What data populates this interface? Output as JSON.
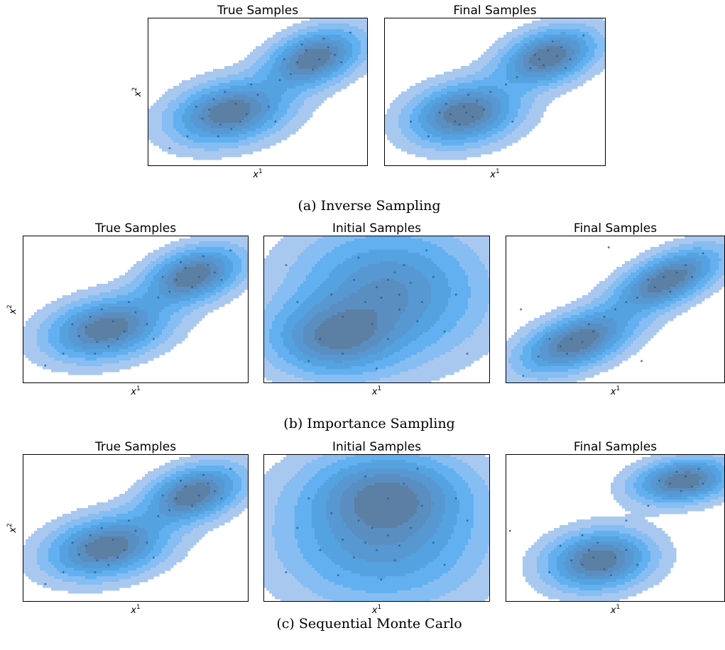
{
  "figure": {
    "rows": [
      {
        "caption": "(a) Inverse Sampling",
        "panels": [
          {
            "title": "True Samples",
            "xlabel": "x",
            "xlabel_sup": "1",
            "ylabel": "x",
            "ylabel_sup": "2"
          },
          {
            "title": "Final Samples",
            "xlabel": "x",
            "xlabel_sup": "1",
            "ylabel": "",
            "ylabel_sup": ""
          }
        ]
      },
      {
        "caption": "(b) Importance Sampling",
        "panels": [
          {
            "title": "True Samples",
            "xlabel": "x",
            "xlabel_sup": "1",
            "ylabel": "x",
            "ylabel_sup": "2"
          },
          {
            "title": "Initial Samples",
            "xlabel": "x",
            "xlabel_sup": "1",
            "ylabel": "",
            "ylabel_sup": ""
          },
          {
            "title": "Final Samples",
            "xlabel": "x",
            "xlabel_sup": "1",
            "ylabel": "",
            "ylabel_sup": ""
          }
        ]
      },
      {
        "caption": "(c) Sequential Monte Carlo",
        "panels": [
          {
            "title": "True Samples",
            "xlabel": "x",
            "xlabel_sup": "1",
            "ylabel": "x",
            "ylabel_sup": "2"
          },
          {
            "title": "Initial Samples",
            "xlabel": "x",
            "xlabel_sup": "1",
            "ylabel": "",
            "ylabel_sup": ""
          },
          {
            "title": "Final Samples",
            "xlabel": "x",
            "xlabel_sup": "1",
            "ylabel": "",
            "ylabel_sup": ""
          }
        ]
      }
    ]
  },
  "colors": {
    "fill_levels": [
      "#a9c8f0",
      "#86bdf2",
      "#62b0f0",
      "#55a2e0",
      "#5898d2",
      "#5a8ec0",
      "#5c7fa4",
      "#5b6a85"
    ],
    "sample_point": "#1f5f9a"
  },
  "chart_data": [
    {
      "type": "contour",
      "panel": "Inverse Sampling / True Samples",
      "xticks": [],
      "yticks": [],
      "grid": false,
      "legend": "none",
      "components": [
        {
          "mean": [
            0.37,
            0.37
          ],
          "spread": [
            0.17,
            0.12
          ],
          "angle": 25
        },
        {
          "mean": [
            0.75,
            0.73
          ],
          "spread": [
            0.15,
            0.1
          ],
          "angle": 38
        }
      ],
      "samples": [
        [
          0.25,
          0.32
        ],
        [
          0.33,
          0.28
        ],
        [
          0.4,
          0.42
        ],
        [
          0.3,
          0.45
        ],
        [
          0.45,
          0.35
        ],
        [
          0.38,
          0.25
        ],
        [
          0.28,
          0.38
        ],
        [
          0.5,
          0.48
        ],
        [
          0.42,
          0.3
        ],
        [
          0.35,
          0.5
        ],
        [
          0.22,
          0.4
        ],
        [
          0.55,
          0.4
        ],
        [
          0.32,
          0.2
        ],
        [
          0.47,
          0.55
        ],
        [
          0.6,
          0.58
        ],
        [
          0.68,
          0.7
        ],
        [
          0.72,
          0.78
        ],
        [
          0.78,
          0.72
        ],
        [
          0.82,
          0.8
        ],
        [
          0.75,
          0.65
        ],
        [
          0.7,
          0.82
        ],
        [
          0.85,
          0.75
        ],
        [
          0.65,
          0.62
        ],
        [
          0.8,
          0.86
        ],
        [
          0.88,
          0.7
        ],
        [
          0.62,
          0.72
        ],
        [
          0.18,
          0.2
        ],
        [
          0.1,
          0.12
        ],
        [
          0.92,
          0.9
        ],
        [
          0.58,
          0.3
        ]
      ]
    },
    {
      "type": "contour",
      "panel": "Inverse Sampling / Final Samples",
      "xticks": [],
      "yticks": [],
      "grid": false,
      "legend": "none",
      "components": [
        {
          "mean": [
            0.36,
            0.36
          ],
          "spread": [
            0.16,
            0.12
          ],
          "angle": 25
        },
        {
          "mean": [
            0.74,
            0.74
          ],
          "spread": [
            0.15,
            0.1
          ],
          "angle": 35
        }
      ],
      "samples": [
        [
          0.3,
          0.35
        ],
        [
          0.36,
          0.4
        ],
        [
          0.4,
          0.33
        ],
        [
          0.34,
          0.28
        ],
        [
          0.42,
          0.44
        ],
        [
          0.28,
          0.42
        ],
        [
          0.38,
          0.48
        ],
        [
          0.45,
          0.38
        ],
        [
          0.32,
          0.3
        ],
        [
          0.48,
          0.5
        ],
        [
          0.25,
          0.36
        ],
        [
          0.37,
          0.36
        ],
        [
          0.55,
          0.55
        ],
        [
          0.6,
          0.6
        ],
        [
          0.7,
          0.72
        ],
        [
          0.74,
          0.78
        ],
        [
          0.78,
          0.74
        ],
        [
          0.72,
          0.68
        ],
        [
          0.8,
          0.8
        ],
        [
          0.68,
          0.75
        ],
        [
          0.84,
          0.72
        ],
        [
          0.76,
          0.84
        ],
        [
          0.82,
          0.66
        ],
        [
          0.66,
          0.66
        ],
        [
          0.12,
          0.3
        ],
        [
          0.9,
          0.88
        ],
        [
          0.2,
          0.2
        ],
        [
          0.58,
          0.3
        ]
      ]
    },
    {
      "type": "contour",
      "panel": "Importance Sampling / True Samples",
      "xticks": [],
      "yticks": [],
      "grid": false,
      "legend": "none",
      "components": [
        {
          "mean": [
            0.37,
            0.37
          ],
          "spread": [
            0.17,
            0.12
          ],
          "angle": 25
        },
        {
          "mean": [
            0.75,
            0.73
          ],
          "spread": [
            0.15,
            0.1
          ],
          "angle": 38
        }
      ],
      "samples": [
        [
          0.25,
          0.32
        ],
        [
          0.33,
          0.28
        ],
        [
          0.4,
          0.42
        ],
        [
          0.3,
          0.45
        ],
        [
          0.45,
          0.35
        ],
        [
          0.38,
          0.25
        ],
        [
          0.28,
          0.38
        ],
        [
          0.5,
          0.48
        ],
        [
          0.42,
          0.3
        ],
        [
          0.35,
          0.5
        ],
        [
          0.22,
          0.4
        ],
        [
          0.55,
          0.4
        ],
        [
          0.32,
          0.2
        ],
        [
          0.47,
          0.55
        ],
        [
          0.6,
          0.58
        ],
        [
          0.68,
          0.7
        ],
        [
          0.72,
          0.78
        ],
        [
          0.78,
          0.72
        ],
        [
          0.82,
          0.8
        ],
        [
          0.75,
          0.65
        ],
        [
          0.7,
          0.82
        ],
        [
          0.85,
          0.75
        ],
        [
          0.65,
          0.62
        ],
        [
          0.8,
          0.86
        ],
        [
          0.88,
          0.7
        ],
        [
          0.62,
          0.72
        ],
        [
          0.18,
          0.2
        ],
        [
          0.1,
          0.12
        ],
        [
          0.92,
          0.9
        ],
        [
          0.58,
          0.3
        ]
      ]
    },
    {
      "type": "contour",
      "panel": "Importance Sampling / Initial Samples",
      "xticks": [],
      "yticks": [],
      "grid": false,
      "legend": "none",
      "components": [
        {
          "mean": [
            0.55,
            0.62
          ],
          "spread": [
            0.26,
            0.28
          ],
          "angle": 0
        },
        {
          "mean": [
            0.3,
            0.3
          ],
          "spread": [
            0.18,
            0.16
          ],
          "angle": 0
        }
      ],
      "samples": [
        [
          0.5,
          0.65
        ],
        [
          0.55,
          0.7
        ],
        [
          0.6,
          0.6
        ],
        [
          0.45,
          0.55
        ],
        [
          0.58,
          0.75
        ],
        [
          0.65,
          0.68
        ],
        [
          0.52,
          0.58
        ],
        [
          0.4,
          0.7
        ],
        [
          0.7,
          0.55
        ],
        [
          0.62,
          0.8
        ],
        [
          0.35,
          0.45
        ],
        [
          0.48,
          0.4
        ],
        [
          0.75,
          0.72
        ],
        [
          0.3,
          0.6
        ],
        [
          0.68,
          0.42
        ],
        [
          0.25,
          0.3
        ],
        [
          0.8,
          0.35
        ],
        [
          0.15,
          0.55
        ],
        [
          0.42,
          0.85
        ],
        [
          0.85,
          0.6
        ],
        [
          0.2,
          0.15
        ],
        [
          0.55,
          0.3
        ],
        [
          0.9,
          0.2
        ],
        [
          0.1,
          0.8
        ],
        [
          0.6,
          0.5
        ],
        [
          0.35,
          0.2
        ],
        [
          0.72,
          0.9
        ],
        [
          0.5,
          0.1
        ]
      ]
    },
    {
      "type": "contour",
      "panel": "Importance Sampling / Final Samples",
      "xticks": [],
      "yticks": [],
      "grid": false,
      "legend": "none",
      "components": [
        {
          "mean": [
            0.32,
            0.28
          ],
          "spread": [
            0.18,
            0.1
          ],
          "angle": 35
        },
        {
          "mean": [
            0.73,
            0.7
          ],
          "spread": [
            0.18,
            0.09
          ],
          "angle": 40
        }
      ],
      "samples": [
        [
          0.25,
          0.25
        ],
        [
          0.3,
          0.3
        ],
        [
          0.35,
          0.28
        ],
        [
          0.28,
          0.2
        ],
        [
          0.4,
          0.35
        ],
        [
          0.2,
          0.3
        ],
        [
          0.45,
          0.45
        ],
        [
          0.5,
          0.5
        ],
        [
          0.6,
          0.58
        ],
        [
          0.68,
          0.65
        ],
        [
          0.72,
          0.72
        ],
        [
          0.78,
          0.75
        ],
        [
          0.82,
          0.8
        ],
        [
          0.65,
          0.7
        ],
        [
          0.75,
          0.62
        ],
        [
          0.85,
          0.72
        ],
        [
          0.55,
          0.55
        ],
        [
          0.38,
          0.4
        ],
        [
          0.15,
          0.18
        ],
        [
          0.08,
          0.05
        ],
        [
          0.47,
          0.92
        ],
        [
          0.62,
          0.15
        ],
        [
          0.07,
          0.5
        ],
        [
          0.9,
          0.88
        ]
      ]
    },
    {
      "type": "contour",
      "panel": "Sequential Monte Carlo / True Samples",
      "xticks": [],
      "yticks": [],
      "grid": false,
      "legend": "none",
      "components": [
        {
          "mean": [
            0.37,
            0.37
          ],
          "spread": [
            0.17,
            0.12
          ],
          "angle": 25
        },
        {
          "mean": [
            0.75,
            0.73
          ],
          "spread": [
            0.15,
            0.1
          ],
          "angle": 38
        }
      ],
      "samples": [
        [
          0.25,
          0.32
        ],
        [
          0.33,
          0.28
        ],
        [
          0.4,
          0.42
        ],
        [
          0.3,
          0.45
        ],
        [
          0.45,
          0.35
        ],
        [
          0.38,
          0.25
        ],
        [
          0.28,
          0.38
        ],
        [
          0.5,
          0.48
        ],
        [
          0.42,
          0.3
        ],
        [
          0.35,
          0.5
        ],
        [
          0.22,
          0.4
        ],
        [
          0.55,
          0.4
        ],
        [
          0.32,
          0.2
        ],
        [
          0.47,
          0.55
        ],
        [
          0.6,
          0.58
        ],
        [
          0.68,
          0.7
        ],
        [
          0.72,
          0.78
        ],
        [
          0.78,
          0.72
        ],
        [
          0.82,
          0.8
        ],
        [
          0.75,
          0.65
        ],
        [
          0.7,
          0.82
        ],
        [
          0.85,
          0.75
        ],
        [
          0.65,
          0.62
        ],
        [
          0.8,
          0.86
        ],
        [
          0.88,
          0.7
        ],
        [
          0.62,
          0.72
        ],
        [
          0.18,
          0.2
        ],
        [
          0.1,
          0.12
        ],
        [
          0.92,
          0.9
        ],
        [
          0.58,
          0.3
        ]
      ]
    },
    {
      "type": "contour",
      "panel": "Sequential Monte Carlo / Initial Samples",
      "xticks": [],
      "yticks": [],
      "grid": false,
      "legend": "none",
      "components": [
        {
          "mean": [
            0.52,
            0.42
          ],
          "spread": [
            0.28,
            0.28
          ],
          "angle": 0
        },
        {
          "mean": [
            0.55,
            0.75
          ],
          "spread": [
            0.22,
            0.18
          ],
          "angle": 0
        }
      ],
      "samples": [
        [
          0.45,
          0.4
        ],
        [
          0.5,
          0.35
        ],
        [
          0.55,
          0.45
        ],
        [
          0.4,
          0.3
        ],
        [
          0.6,
          0.38
        ],
        [
          0.48,
          0.5
        ],
        [
          0.35,
          0.42
        ],
        [
          0.58,
          0.28
        ],
        [
          0.65,
          0.5
        ],
        [
          0.42,
          0.55
        ],
        [
          0.3,
          0.6
        ],
        [
          0.7,
          0.65
        ],
        [
          0.55,
          0.7
        ],
        [
          0.25,
          0.35
        ],
        [
          0.75,
          0.4
        ],
        [
          0.62,
          0.8
        ],
        [
          0.2,
          0.7
        ],
        [
          0.8,
          0.25
        ],
        [
          0.45,
          0.85
        ],
        [
          0.15,
          0.5
        ],
        [
          0.85,
          0.7
        ],
        [
          0.52,
          0.15
        ],
        [
          0.33,
          0.18
        ],
        [
          0.9,
          0.55
        ],
        [
          0.1,
          0.2
        ],
        [
          0.68,
          0.9
        ]
      ]
    },
    {
      "type": "contour",
      "panel": "Sequential Monte Carlo / Final Samples",
      "xticks": [],
      "yticks": [],
      "grid": false,
      "legend": "none",
      "components": [
        {
          "mean": [
            0.42,
            0.28
          ],
          "spread": [
            0.15,
            0.12
          ],
          "angle": 20
        },
        {
          "mean": [
            0.8,
            0.82
          ],
          "spread": [
            0.14,
            0.09
          ],
          "angle": 15
        }
      ],
      "samples": [
        [
          0.35,
          0.25
        ],
        [
          0.4,
          0.3
        ],
        [
          0.45,
          0.22
        ],
        [
          0.38,
          0.35
        ],
        [
          0.5,
          0.3
        ],
        [
          0.3,
          0.28
        ],
        [
          0.42,
          0.4
        ],
        [
          0.48,
          0.18
        ],
        [
          0.55,
          0.35
        ],
        [
          0.35,
          0.45
        ],
        [
          0.25,
          0.38
        ],
        [
          0.6,
          0.25
        ],
        [
          0.75,
          0.8
        ],
        [
          0.82,
          0.85
        ],
        [
          0.78,
          0.88
        ],
        [
          0.85,
          0.78
        ],
        [
          0.88,
          0.9
        ],
        [
          0.7,
          0.82
        ],
        [
          0.9,
          0.8
        ],
        [
          0.8,
          0.75
        ],
        [
          0.02,
          0.48
        ],
        [
          0.55,
          0.55
        ],
        [
          0.65,
          0.65
        ],
        [
          0.2,
          0.2
        ]
      ]
    }
  ]
}
